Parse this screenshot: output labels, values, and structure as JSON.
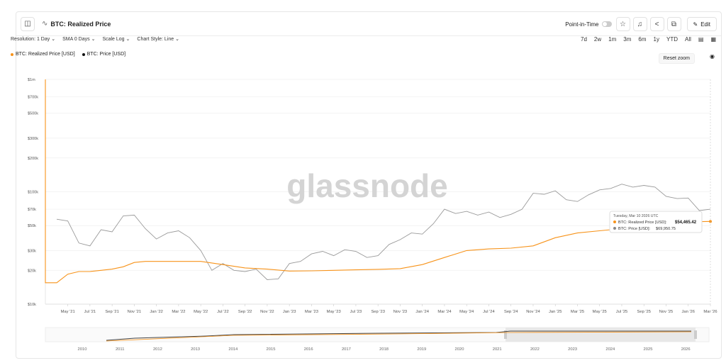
{
  "header": {
    "title": "BTC: Realized Price",
    "point_in_time_label": "Point-in-Time",
    "edit_label": "Edit"
  },
  "controls": {
    "resolution": "Resolution: 1 Day",
    "sma": "SMA 0 Days",
    "scale": "Scale Log",
    "chart_style": "Chart Style: Line"
  },
  "ranges": [
    "7d",
    "2w",
    "1m",
    "3m",
    "6m",
    "1y",
    "YTD",
    "All"
  ],
  "reset_zoom_label": "Reset zoom",
  "watermark": "glassnode",
  "colors": {
    "realized": "#f7931a",
    "price": "#111111",
    "price_line": "#9a9a9a"
  },
  "tooltip": {
    "date": "Tuesday, Mar 10 2026 UTC",
    "realized_label": "BTC: Realized Price [USD]:",
    "realized_value": "$54,465.42",
    "price_label": "BTC: Price [USD]:",
    "price_value": "$69,950.75"
  },
  "chart_data": {
    "type": "line",
    "scale": "log",
    "ylim": [
      10000,
      1000000
    ],
    "y_ticks": [
      {
        "value": 1000000,
        "label": "$1m"
      },
      {
        "value": 700000,
        "label": "$700k"
      },
      {
        "value": 500000,
        "label": "$500k"
      },
      {
        "value": 300000,
        "label": "$300k"
      },
      {
        "value": 200000,
        "label": "$200k"
      },
      {
        "value": 100000,
        "label": "$100k"
      },
      {
        "value": 70000,
        "label": "$70k"
      },
      {
        "value": 50000,
        "label": "$50k"
      },
      {
        "value": 30000,
        "label": "$30k"
      },
      {
        "value": 20000,
        "label": "$20k"
      },
      {
        "value": 10000,
        "label": "$10k"
      }
    ],
    "x_ticks": [
      "May '21",
      "Jul '21",
      "Sep '21",
      "Nov '21",
      "Jan '22",
      "Mar '22",
      "May '22",
      "Jul '22",
      "Sep '22",
      "Nov '22",
      "Jan '23",
      "Mar '23",
      "May '23",
      "Jul '23",
      "Sep '23",
      "Nov '23",
      "Jan '24",
      "Mar '24",
      "May '24",
      "Jul '24",
      "Sep '24",
      "Nov '24",
      "Jan '25",
      "Mar '25",
      "May '25",
      "Jul '25",
      "Sep '25",
      "Nov '25",
      "Jan '26",
      "Mar '26"
    ],
    "navigator_ticks": [
      "2010",
      "2011",
      "2012",
      "2013",
      "2014",
      "2015",
      "2016",
      "2017",
      "2018",
      "2019",
      "2020",
      "2021",
      "2022",
      "2023",
      "2024",
      "2025",
      "2026"
    ],
    "series": [
      {
        "name": "BTC: Realized Price [USD]",
        "color": "#f7931a",
        "points": [
          [
            "Apr '21",
            15500
          ],
          [
            "May '21",
            18500
          ],
          [
            "Jun '21",
            19500
          ],
          [
            "Jul '21",
            19500
          ],
          [
            "Aug '21",
            20000
          ],
          [
            "Sep '21",
            20500
          ],
          [
            "Oct '21",
            21500
          ],
          [
            "Nov '21",
            23500
          ],
          [
            "Dec '21",
            24000
          ],
          [
            "Jan '22",
            24000
          ],
          [
            "Mar '22",
            24000
          ],
          [
            "May '22",
            24000
          ],
          [
            "Jul '22",
            22500
          ],
          [
            "Sep '22",
            21000
          ],
          [
            "Nov '22",
            20500
          ],
          [
            "Jan '23",
            19700
          ],
          [
            "Mar '23",
            19800
          ],
          [
            "May '23",
            20000
          ],
          [
            "Jul '23",
            20200
          ],
          [
            "Sep '23",
            20400
          ],
          [
            "Nov '23",
            20700
          ],
          [
            "Jan '24",
            22500
          ],
          [
            "Mar '24",
            26000
          ],
          [
            "May '24",
            30000
          ],
          [
            "Jul '24",
            31000
          ],
          [
            "Sep '24",
            31500
          ],
          [
            "Nov '24",
            33000
          ],
          [
            "Jan '25",
            39000
          ],
          [
            "Mar '25",
            43000
          ],
          [
            "May '25",
            45000
          ],
          [
            "Jul '25",
            47000
          ],
          [
            "Sep '25",
            50000
          ],
          [
            "Nov '25",
            53000
          ],
          [
            "Jan '26",
            54000
          ],
          [
            "Mar '26",
            54465.42
          ]
        ]
      },
      {
        "name": "BTC: Price [USD]",
        "color": "#9a9a9a",
        "points": [
          [
            "Apr '21",
            57000
          ],
          [
            "May '21",
            55000
          ],
          [
            "Jun '21",
            35000
          ],
          [
            "Jul '21",
            33000
          ],
          [
            "Aug '21",
            46000
          ],
          [
            "Sep '21",
            44000
          ],
          [
            "Oct '21",
            61000
          ],
          [
            "Nov '21",
            62000
          ],
          [
            "Dec '21",
            47000
          ],
          [
            "Jan '22",
            38000
          ],
          [
            "Feb '22",
            43000
          ],
          [
            "Mar '22",
            45000
          ],
          [
            "Apr '22",
            39000
          ],
          [
            "May '22",
            30000
          ],
          [
            "Jun '22",
            20000
          ],
          [
            "Jul '22",
            23000
          ],
          [
            "Aug '22",
            20000
          ],
          [
            "Sep '22",
            19500
          ],
          [
            "Oct '22",
            20500
          ],
          [
            "Nov '22",
            16500
          ],
          [
            "Dec '22",
            16800
          ],
          [
            "Jan '23",
            23000
          ],
          [
            "Feb '23",
            24000
          ],
          [
            "Mar '23",
            28000
          ],
          [
            "Apr '23",
            29500
          ],
          [
            "May '23",
            27000
          ],
          [
            "Jun '23",
            30500
          ],
          [
            "Jul '23",
            29500
          ],
          [
            "Aug '23",
            26000
          ],
          [
            "Sep '23",
            27000
          ],
          [
            "Oct '23",
            34000
          ],
          [
            "Nov '23",
            37500
          ],
          [
            "Dec '23",
            43000
          ],
          [
            "Jan '24",
            42000
          ],
          [
            "Feb '24",
            52000
          ],
          [
            "Mar '24",
            70000
          ],
          [
            "Apr '24",
            64000
          ],
          [
            "May '24",
            67000
          ],
          [
            "Jun '24",
            62000
          ],
          [
            "Jul '24",
            66000
          ],
          [
            "Aug '24",
            59000
          ],
          [
            "Sep '24",
            63000
          ],
          [
            "Oct '24",
            70000
          ],
          [
            "Nov '24",
            97000
          ],
          [
            "Dec '24",
            95000
          ],
          [
            "Jan '25",
            102000
          ],
          [
            "Feb '25",
            85000
          ],
          [
            "Mar '25",
            82000
          ],
          [
            "Apr '25",
            94000
          ],
          [
            "May '25",
            104000
          ],
          [
            "Jun '25",
            107000
          ],
          [
            "Jul '25",
            117000
          ],
          [
            "Aug '25",
            110000
          ],
          [
            "Sep '25",
            114000
          ],
          [
            "Oct '25",
            110000
          ],
          [
            "Nov '25",
            91000
          ],
          [
            "Dec '25",
            87000
          ],
          [
            "Jan '26",
            88000
          ],
          [
            "Feb '26",
            68000
          ],
          [
            "Mar '26",
            69950.75
          ]
        ]
      }
    ]
  }
}
